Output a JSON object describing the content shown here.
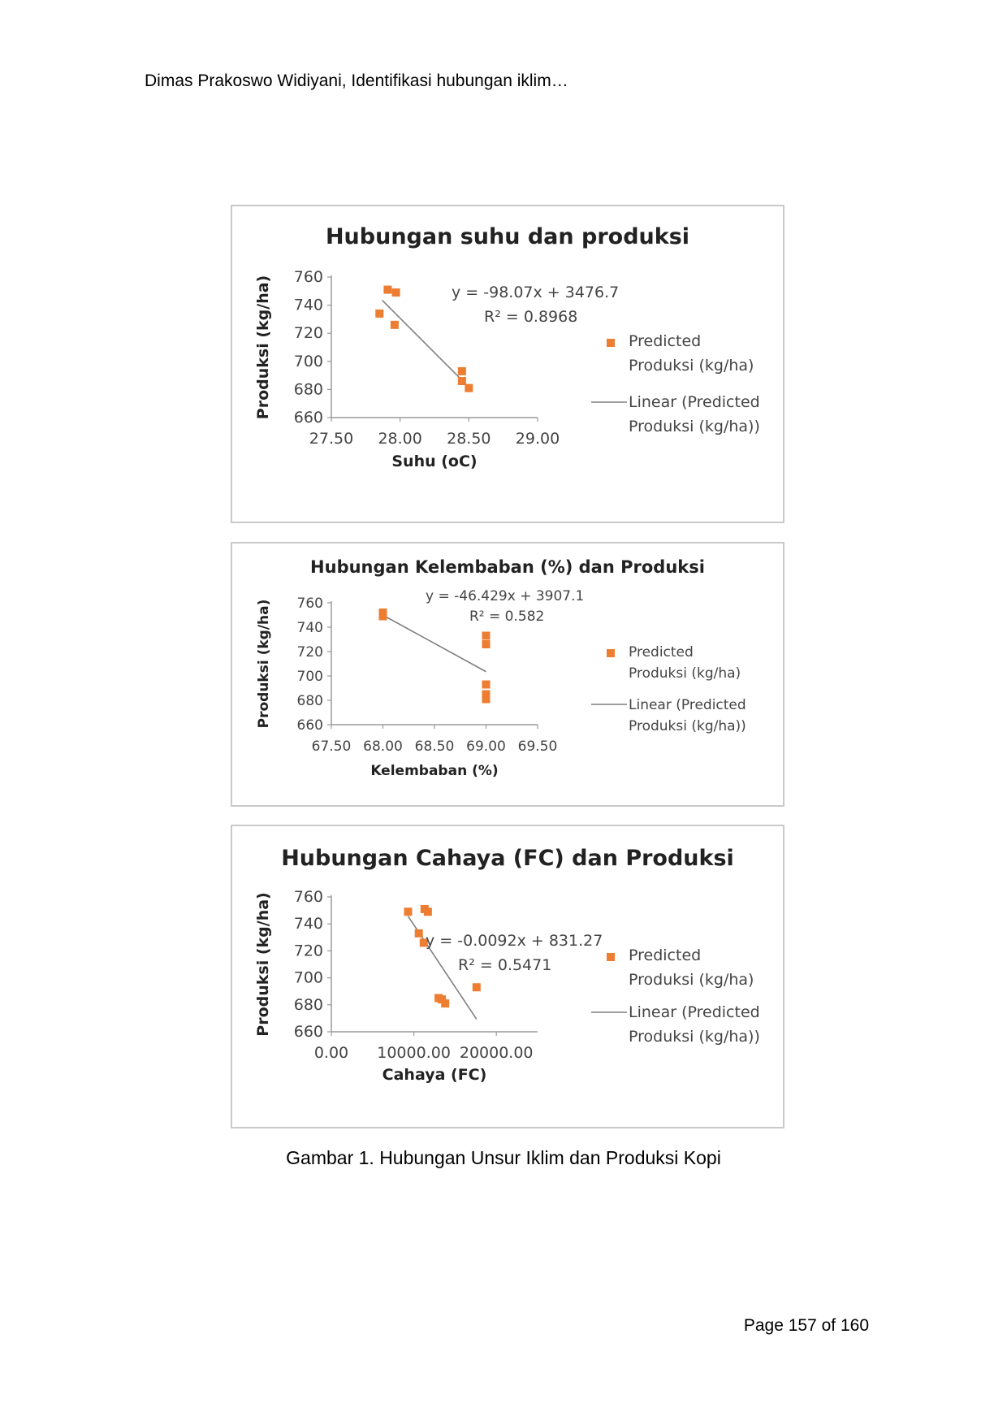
{
  "header": {
    "running_head": "Dimas Prakoswo Widiyani, Identifikasi hubungan iklim…"
  },
  "figure": {
    "caption": "Gambar 1. Hubungan Unsur Iklim dan Produksi Kopi"
  },
  "footer": {
    "page_label": "Page 157 of 160"
  },
  "chart_data": [
    {
      "type": "scatter",
      "title": "Hubungan suhu dan produksi",
      "xlabel": "Suhu (oC)",
      "ylabel": "Produksi (kg/ha)",
      "xlim": [
        27.5,
        29.0
      ],
      "ylim": [
        660,
        760
      ],
      "x_ticks": [
        "27.50",
        "28.00",
        "28.50",
        "29.00"
      ],
      "y_ticks": [
        "660",
        "680",
        "700",
        "720",
        "740",
        "760"
      ],
      "series": [
        {
          "name": "Predicted Produksi (kg/ha)",
          "color": "#ed7d31",
          "x": [
            27.85,
            27.91,
            27.97,
            27.96,
            28.45,
            28.45,
            28.5
          ],
          "y": [
            734,
            751,
            749,
            726,
            693,
            686,
            681
          ]
        }
      ],
      "trendline": {
        "name": "Linear (Predicted Produksi (kg/ha))",
        "slope": -98.07,
        "intercept": 3476.7,
        "x_range": [
          27.87,
          28.5
        ],
        "color": "#7f7f7f"
      },
      "equation": "y = -98.07x + 3476.7",
      "r_squared": "R² = 0.8968",
      "legend": {
        "position": "right",
        "marker_label": [
          "Predicted",
          "Produksi (kg/ha)"
        ],
        "line_label": [
          "Linear (Predicted",
          "Produksi (kg/ha))"
        ]
      },
      "grid": false
    },
    {
      "type": "scatter",
      "title": "Hubungan Kelembaban (%) dan Produksi",
      "xlabel": "Kelembaban (%)",
      "ylabel": "Produksi (kg/ha)",
      "xlim": [
        67.5,
        69.5
      ],
      "ylim": [
        660,
        760
      ],
      "x_ticks": [
        "67.50",
        "68.00",
        "68.50",
        "69.00",
        "69.50"
      ],
      "y_ticks": [
        "660",
        "680",
        "700",
        "720",
        "740",
        "760"
      ],
      "series": [
        {
          "name": "Predicted Produksi (kg/ha)",
          "color": "#ed7d31",
          "x": [
            68.0,
            68.0,
            69.0,
            69.0,
            69.0,
            69.0,
            69.0
          ],
          "y": [
            749,
            752,
            733,
            726,
            693,
            685,
            681
          ]
        }
      ],
      "trendline": {
        "name": "Linear (Predicted Produksi (kg/ha))",
        "slope": -46.429,
        "intercept": 3907.1,
        "x_range": [
          68.0,
          69.0
        ],
        "color": "#7f7f7f"
      },
      "equation": "y = -46.429x + 3907.1",
      "r_squared": "R² = 0.582",
      "legend": {
        "position": "right",
        "marker_label": [
          "Predicted",
          "Produksi (kg/ha)"
        ],
        "line_label": [
          "Linear (Predicted",
          "Produksi (kg/ha))"
        ]
      },
      "grid": false
    },
    {
      "type": "scatter",
      "title": "Hubungan Cahaya (FC) dan Produksi",
      "xlabel": "Cahaya (FC)",
      "ylabel": "Produksi (kg/ha)",
      "xlim": [
        0,
        25000
      ],
      "ylim": [
        660,
        760
      ],
      "x_ticks": [
        "0.00",
        "10000.00",
        "20000.00"
      ],
      "y_ticks": [
        "660",
        "680",
        "700",
        "720",
        "740",
        "760"
      ],
      "series": [
        {
          "name": "Predicted Produksi (kg/ha)",
          "color": "#ed7d31",
          "x": [
            9300,
            10600,
            11200,
            11300,
            11700,
            13000,
            13400,
            13800,
            17600
          ],
          "y": [
            749,
            733,
            726,
            751,
            749,
            685,
            684,
            681,
            693
          ]
        }
      ],
      "trendline": {
        "name": "Linear (Predicted Produksi (kg/ha))",
        "slope": -0.0092,
        "intercept": 831.27,
        "x_range": [
          9300,
          17600
        ],
        "color": "#7f7f7f"
      },
      "equation": "y = -0.0092x + 831.27",
      "r_squared": "R² = 0.5471",
      "legend": {
        "position": "right",
        "marker_label": [
          "Predicted",
          "Produksi (kg/ha)"
        ],
        "line_label": [
          "Linear (Predicted",
          "Produksi (kg/ha))"
        ]
      },
      "grid": false
    }
  ]
}
